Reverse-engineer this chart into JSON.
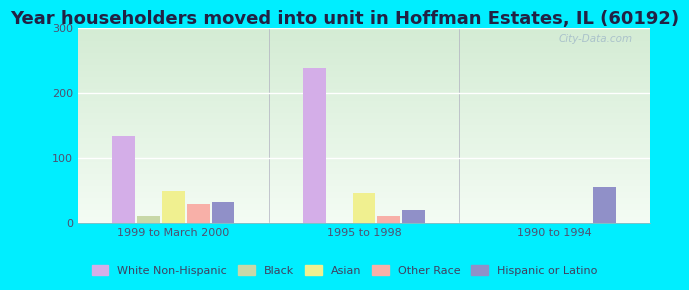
{
  "title": "Year householders moved into unit in Hoffman Estates, IL (60192)",
  "groups": [
    "1999 to March 2000",
    "1995 to 1998",
    "1990 to 1994"
  ],
  "series": [
    {
      "name": "White Non-Hispanic",
      "color": "#d4aee8",
      "values": [
        133,
        238,
        0
      ]
    },
    {
      "name": "Black",
      "color": "#c8d8a8",
      "values": [
        10,
        0,
        0
      ]
    },
    {
      "name": "Asian",
      "color": "#f0f090",
      "values": [
        48,
        45,
        0
      ]
    },
    {
      "name": "Other Race",
      "color": "#f8b0a8",
      "values": [
        28,
        10,
        0
      ]
    },
    {
      "name": "Hispanic or Latino",
      "color": "#9090c8",
      "values": [
        32,
        20,
        55
      ]
    }
  ],
  "ylim": [
    0,
    300
  ],
  "yticks": [
    0,
    100,
    200,
    300
  ],
  "background_color": "#00eeff",
  "plot_bg_top": "#d4ecd4",
  "plot_bg_bottom": "#f4fcf4",
  "title_fontsize": 13,
  "tick_fontsize": 8,
  "legend_fontsize": 8,
  "bar_width": 0.13,
  "watermark": "City-Data.com"
}
